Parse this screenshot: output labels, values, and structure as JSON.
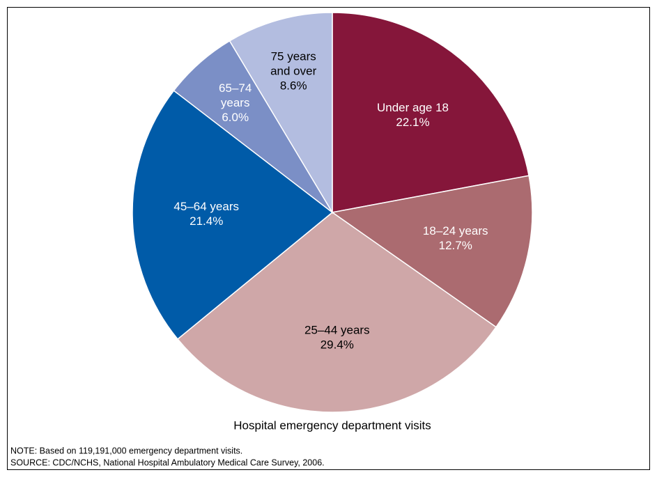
{
  "chart_data": {
    "type": "pie",
    "title": "Hospital emergency department visits",
    "categories": [
      [
        "Under age 18"
      ],
      [
        "18–24 years"
      ],
      [
        "25–44 years"
      ],
      [
        "45–64 years"
      ],
      [
        "65–74",
        "years"
      ],
      [
        "75 years",
        "and over"
      ]
    ],
    "values": [
      22.1,
      12.7,
      29.4,
      21.4,
      6.0,
      8.6
    ],
    "value_labels": [
      "22.1%",
      "12.7%",
      "29.4%",
      "21.4%",
      "6.0%",
      "8.6%"
    ],
    "colors": [
      "#85163a",
      "#ab6b70",
      "#cfa7a8",
      "#005ba8",
      "#7b8fc6",
      "#b3bde0"
    ],
    "label_colors": [
      "#ffffff",
      "#ffffff",
      "#000000",
      "#ffffff",
      "#ffffff",
      "#000000"
    ],
    "notes": [
      "NOTE: Based on 119,191,000 emergency department visits.",
      "SOURCE: CDC/NCHS, National Hospital Ambulatory Medical Care Survey, 2006."
    ]
  }
}
